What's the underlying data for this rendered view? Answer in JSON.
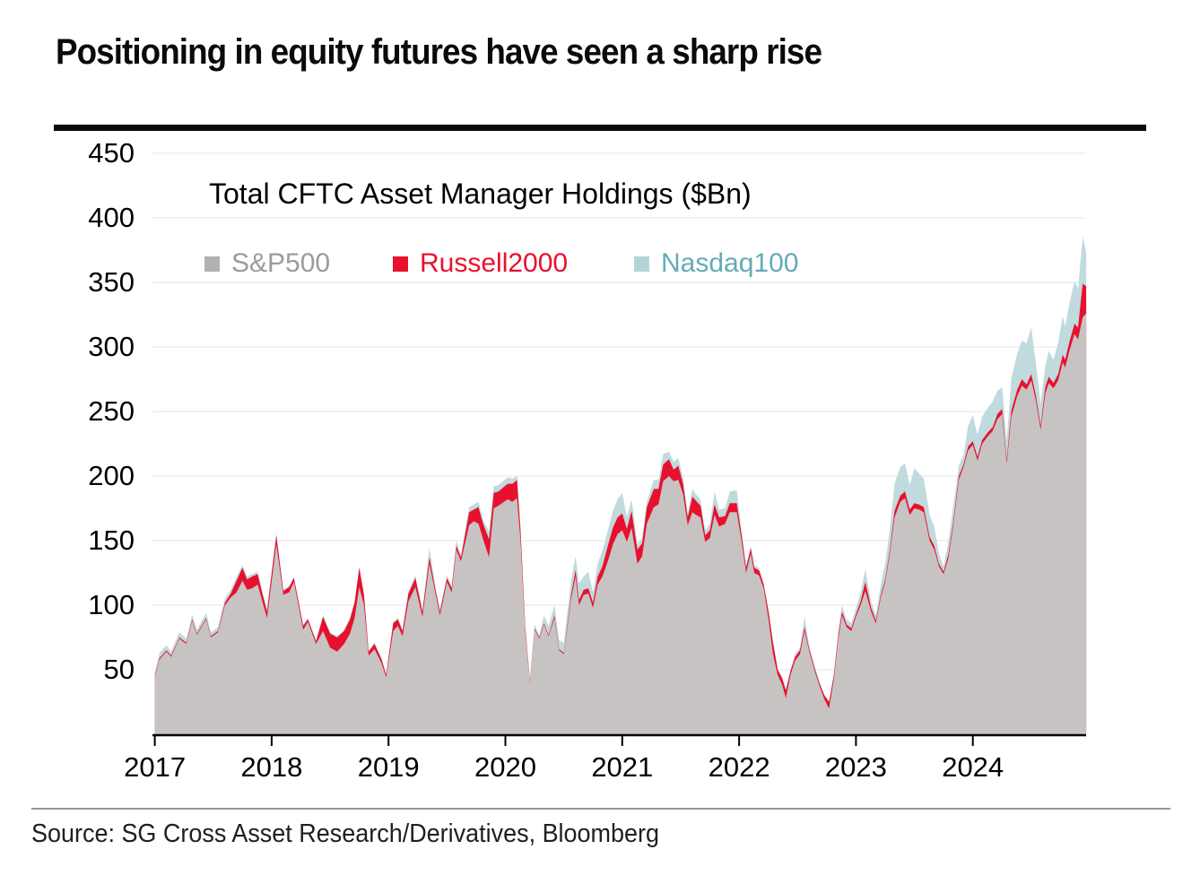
{
  "page": {
    "title": "Positioning in equity futures have seen a sharp rise",
    "source": "Source: SG Cross Asset Research/Derivatives, Bloomberg"
  },
  "colors": {
    "title_text": "#0a0a0a",
    "rule_black": "#0a0a0a",
    "rule_gray": "#969696",
    "gridline": "#ebebeb",
    "axis": "#000000"
  },
  "chart_data": {
    "type": "area",
    "stacked": true,
    "title": "Total CFTC Asset Manager Holdings ($Bn)",
    "xlabel": "",
    "ylabel": "",
    "ylim": [
      0,
      450
    ],
    "y_ticks": [
      50,
      100,
      150,
      200,
      250,
      300,
      350,
      400,
      450
    ],
    "x_ticks": [
      2017,
      2018,
      2019,
      2020,
      2021,
      2022,
      2023,
      2024
    ],
    "grid": true,
    "legend_position": "top-left-inline",
    "series": [
      {
        "name": "S&P500",
        "fill": "#c7c3c2",
        "swatch": "#b3b0b0",
        "label_color": "#9d9a9a"
      },
      {
        "name": "Russell2000",
        "fill": "#e8112d",
        "swatch": "#e8112d",
        "label_color": "#e8112d"
      },
      {
        "name": "Nasdaq100",
        "fill": "#c0dade",
        "swatch": "#b5d4da",
        "label_color": "#65aab6"
      }
    ],
    "points_format": [
      "year",
      "sp500",
      "russell2000",
      "nasdaq100"
    ],
    "points": [
      [
        2017.0,
        44,
        1,
        3
      ],
      [
        2017.04,
        58,
        1,
        4
      ],
      [
        2017.1,
        64,
        1,
        4
      ],
      [
        2017.14,
        60,
        1,
        3
      ],
      [
        2017.21,
        74,
        1,
        4
      ],
      [
        2017.27,
        70,
        1,
        3
      ],
      [
        2017.32,
        88,
        1,
        4
      ],
      [
        2017.36,
        77,
        1,
        3
      ],
      [
        2017.44,
        89,
        1,
        4
      ],
      [
        2017.48,
        75,
        1,
        3
      ],
      [
        2017.54,
        79,
        1,
        3
      ],
      [
        2017.6,
        100,
        2,
        3
      ],
      [
        2017.65,
        106,
        3,
        3
      ],
      [
        2017.7,
        110,
        9,
        3
      ],
      [
        2017.75,
        119,
        10,
        2
      ],
      [
        2017.79,
        112,
        8,
        2
      ],
      [
        2017.83,
        113,
        9,
        2
      ],
      [
        2017.88,
        116,
        8,
        2
      ],
      [
        2017.92,
        103,
        6,
        2
      ],
      [
        2017.96,
        90,
        5,
        2
      ],
      [
        2018.04,
        147,
        7,
        2
      ],
      [
        2018.1,
        108,
        3,
        1
      ],
      [
        2018.15,
        110,
        4,
        1
      ],
      [
        2018.19,
        118,
        3,
        1
      ],
      [
        2018.27,
        81,
        3,
        1
      ],
      [
        2018.31,
        87,
        2,
        1
      ],
      [
        2018.38,
        70,
        2,
        1
      ],
      [
        2018.44,
        80,
        11,
        1
      ],
      [
        2018.5,
        67,
        11,
        1
      ],
      [
        2018.56,
        64,
        11,
        1
      ],
      [
        2018.62,
        70,
        10,
        1
      ],
      [
        2018.67,
        78,
        11,
        1
      ],
      [
        2018.71,
        90,
        12,
        1
      ],
      [
        2018.75,
        114,
        15,
        1
      ],
      [
        2018.79,
        100,
        8,
        1
      ],
      [
        2018.83,
        61,
        3,
        1
      ],
      [
        2018.88,
        66,
        4,
        1
      ],
      [
        2018.94,
        55,
        3,
        1
      ],
      [
        2018.98,
        44,
        2,
        1
      ],
      [
        2019.04,
        80,
        6,
        1
      ],
      [
        2019.08,
        84,
        5,
        1
      ],
      [
        2019.12,
        76,
        4,
        1
      ],
      [
        2019.17,
        103,
        6,
        2
      ],
      [
        2019.23,
        114,
        7,
        2
      ],
      [
        2019.29,
        91,
        4,
        1
      ],
      [
        2019.35,
        132,
        5,
        8
      ],
      [
        2019.4,
        110,
        3,
        2
      ],
      [
        2019.44,
        92,
        3,
        2
      ],
      [
        2019.5,
        118,
        3,
        2
      ],
      [
        2019.54,
        110,
        3,
        2
      ],
      [
        2019.58,
        143,
        3,
        4
      ],
      [
        2019.62,
        134,
        3,
        2
      ],
      [
        2019.69,
        162,
        10,
        4
      ],
      [
        2019.73,
        165,
        9,
        4
      ],
      [
        2019.77,
        163,
        13,
        4
      ],
      [
        2019.81,
        151,
        12,
        3
      ],
      [
        2019.86,
        137,
        14,
        6
      ],
      [
        2019.9,
        175,
        12,
        5
      ],
      [
        2019.94,
        177,
        11,
        5
      ],
      [
        2020.02,
        182,
        12,
        5
      ],
      [
        2020.06,
        180,
        14,
        4
      ],
      [
        2020.1,
        183,
        14,
        3
      ],
      [
        2020.13,
        150,
        8,
        2
      ],
      [
        2020.17,
        80,
        3,
        1
      ],
      [
        2020.21,
        40,
        1,
        1
      ],
      [
        2020.25,
        81,
        1,
        3
      ],
      [
        2020.29,
        74,
        1,
        2
      ],
      [
        2020.33,
        85,
        1,
        6
      ],
      [
        2020.37,
        76,
        1,
        7
      ],
      [
        2020.42,
        90,
        2,
        8
      ],
      [
        2020.46,
        65,
        1,
        7
      ],
      [
        2020.5,
        62,
        1,
        8
      ],
      [
        2020.56,
        104,
        3,
        11
      ],
      [
        2020.6,
        122,
        5,
        11
      ],
      [
        2020.63,
        100,
        4,
        13
      ],
      [
        2020.67,
        108,
        4,
        10
      ],
      [
        2020.71,
        109,
        4,
        13
      ],
      [
        2020.75,
        98,
        4,
        8
      ],
      [
        2020.79,
        116,
        6,
        10
      ],
      [
        2020.83,
        122,
        8,
        12
      ],
      [
        2020.88,
        135,
        12,
        12
      ],
      [
        2020.92,
        147,
        13,
        13
      ],
      [
        2020.96,
        155,
        13,
        14
      ],
      [
        2021.0,
        158,
        13,
        16
      ],
      [
        2021.04,
        149,
        10,
        9
      ],
      [
        2021.08,
        160,
        13,
        9
      ],
      [
        2021.13,
        132,
        11,
        4
      ],
      [
        2021.17,
        138,
        10,
        4
      ],
      [
        2021.21,
        163,
        13,
        4
      ],
      [
        2021.27,
        176,
        14,
        7
      ],
      [
        2021.31,
        178,
        12,
        7
      ],
      [
        2021.35,
        196,
        13,
        8
      ],
      [
        2021.4,
        200,
        13,
        6
      ],
      [
        2021.44,
        196,
        9,
        6
      ],
      [
        2021.48,
        197,
        11,
        6
      ],
      [
        2021.52,
        186,
        8,
        5
      ],
      [
        2021.56,
        162,
        6,
        3
      ],
      [
        2021.6,
        172,
        12,
        6
      ],
      [
        2021.63,
        170,
        11,
        5
      ],
      [
        2021.67,
        168,
        9,
        5
      ],
      [
        2021.71,
        149,
        5,
        4
      ],
      [
        2021.75,
        152,
        6,
        5
      ],
      [
        2021.79,
        170,
        8,
        10
      ],
      [
        2021.83,
        161,
        7,
        6
      ],
      [
        2021.88,
        163,
        6,
        6
      ],
      [
        2021.92,
        172,
        7,
        9
      ],
      [
        2021.98,
        172,
        7,
        10
      ],
      [
        2022.02,
        150,
        5,
        4
      ],
      [
        2022.06,
        125,
        4,
        2
      ],
      [
        2022.1,
        140,
        4,
        2
      ],
      [
        2022.13,
        125,
        4,
        2
      ],
      [
        2022.17,
        123,
        4,
        2
      ],
      [
        2022.21,
        113,
        3,
        1
      ],
      [
        2022.25,
        90,
        6,
        1
      ],
      [
        2022.29,
        62,
        9,
        1
      ],
      [
        2022.33,
        46,
        4,
        1
      ],
      [
        2022.37,
        38,
        5,
        1
      ],
      [
        2022.4,
        28,
        6,
        1
      ],
      [
        2022.44,
        46,
        3,
        1
      ],
      [
        2022.48,
        57,
        3,
        2
      ],
      [
        2022.52,
        62,
        3,
        2
      ],
      [
        2022.56,
        80,
        3,
        8
      ],
      [
        2022.6,
        64,
        2,
        3
      ],
      [
        2022.65,
        48,
        2,
        2
      ],
      [
        2022.69,
        37,
        2,
        1
      ],
      [
        2022.73,
        27,
        3,
        1
      ],
      [
        2022.77,
        20,
        5,
        1
      ],
      [
        2022.81,
        42,
        3,
        2
      ],
      [
        2022.85,
        75,
        3,
        3
      ],
      [
        2022.88,
        92,
        3,
        5
      ],
      [
        2022.92,
        83,
        2,
        4
      ],
      [
        2022.96,
        80,
        2,
        4
      ],
      [
        2023.0,
        91,
        2,
        5
      ],
      [
        2023.04,
        100,
        3,
        7
      ],
      [
        2023.08,
        111,
        7,
        10
      ],
      [
        2023.13,
        95,
        3,
        5
      ],
      [
        2023.17,
        86,
        2,
        4
      ],
      [
        2023.21,
        105,
        2,
        8
      ],
      [
        2023.25,
        118,
        2,
        12
      ],
      [
        2023.29,
        140,
        3,
        16
      ],
      [
        2023.33,
        168,
        5,
        21
      ],
      [
        2023.38,
        180,
        5,
        22
      ],
      [
        2023.42,
        183,
        5,
        22
      ],
      [
        2023.46,
        170,
        4,
        19
      ],
      [
        2023.5,
        175,
        4,
        27
      ],
      [
        2023.54,
        174,
        4,
        24
      ],
      [
        2023.58,
        172,
        4,
        22
      ],
      [
        2023.63,
        150,
        3,
        17
      ],
      [
        2023.67,
        143,
        3,
        15
      ],
      [
        2023.71,
        130,
        2,
        8
      ],
      [
        2023.75,
        124,
        2,
        4
      ],
      [
        2023.79,
        136,
        3,
        10
      ],
      [
        2023.83,
        160,
        3,
        12
      ],
      [
        2023.88,
        197,
        3,
        8
      ],
      [
        2023.92,
        207,
        2,
        7
      ],
      [
        2023.96,
        220,
        3,
        16
      ],
      [
        2024.0,
        224,
        3,
        20
      ],
      [
        2024.04,
        212,
        3,
        17
      ],
      [
        2024.08,
        225,
        3,
        18
      ],
      [
        2024.13,
        231,
        3,
        19
      ],
      [
        2024.17,
        235,
        3,
        20
      ],
      [
        2024.21,
        244,
        4,
        18
      ],
      [
        2024.25,
        248,
        4,
        17
      ],
      [
        2024.29,
        210,
        3,
        15
      ],
      [
        2024.33,
        246,
        5,
        25
      ],
      [
        2024.38,
        262,
        5,
        28
      ],
      [
        2024.42,
        270,
        5,
        30
      ],
      [
        2024.46,
        267,
        4,
        32
      ],
      [
        2024.5,
        274,
        5,
        36
      ],
      [
        2024.54,
        258,
        4,
        25
      ],
      [
        2024.58,
        236,
        3,
        17
      ],
      [
        2024.62,
        264,
        5,
        16
      ],
      [
        2024.65,
        272,
        5,
        20
      ],
      [
        2024.69,
        268,
        4,
        18
      ],
      [
        2024.73,
        274,
        5,
        24
      ],
      [
        2024.77,
        288,
        6,
        30
      ],
      [
        2024.79,
        284,
        6,
        26
      ],
      [
        2024.83,
        298,
        7,
        30
      ],
      [
        2024.87,
        310,
        8,
        33
      ],
      [
        2024.9,
        306,
        9,
        30
      ],
      [
        2024.94,
        323,
        26,
        36
      ],
      [
        2024.97,
        326,
        21,
        27
      ]
    ]
  }
}
